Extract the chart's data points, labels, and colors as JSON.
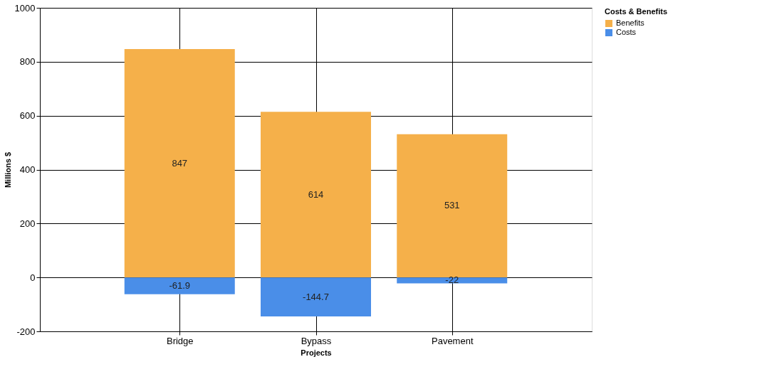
{
  "chart_data": {
    "type": "bar",
    "stacked": true,
    "xlabel": "Projects",
    "ylabel": "Millions $",
    "legend_title": "Costs & Benefits",
    "legend": "top right",
    "grid": true,
    "data_labels": true,
    "categories": [
      "Bridge",
      "Bypass",
      "Pavement"
    ],
    "ylim": [
      -200,
      1000
    ],
    "yticks": [
      -200,
      0,
      200,
      400,
      600,
      800,
      {
        "value": 1000,
        "label": "1000"
      }
    ],
    "series": [
      {
        "name": "Benefits",
        "color": "#f5b04a",
        "values": [
          847,
          614,
          531
        ]
      },
      {
        "name": "Costs",
        "color": "#4a8ee8",
        "values": [
          -61.9,
          -144.7,
          -22
        ]
      }
    ]
  }
}
